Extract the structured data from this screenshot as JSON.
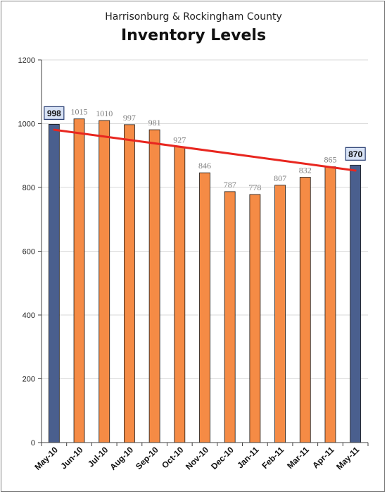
{
  "subtitle": "Harrisonburg & Rockingham County",
  "title": "Inventory Levels",
  "colors": {
    "bar": "#f58b45",
    "highlight_bar": "#4a5f8e",
    "trend_line": "#e8261f",
    "gridline": "#d9d9d9",
    "axis": "#404040",
    "value_label": "#808080",
    "highlight_label_bg": "#d7e2f5",
    "highlight_label_border": "#2a3f73"
  },
  "chart_data": {
    "type": "bar",
    "categories": [
      "May-10",
      "Jun-10",
      "Jul-10",
      "Aug-10",
      "Sep-10",
      "Oct-10",
      "Nov-10",
      "Dec-10",
      "Jan-11",
      "Feb-11",
      "Mar-11",
      "Apr-11",
      "May-11"
    ],
    "values": [
      998,
      1015,
      1010,
      997,
      981,
      927,
      846,
      787,
      778,
      807,
      832,
      865,
      870
    ],
    "highlighted": [
      0,
      12
    ],
    "ylim": [
      0,
      1200
    ],
    "yticks": [
      0,
      200,
      400,
      600,
      800,
      1000,
      1200
    ],
    "grid": true,
    "legend": "none",
    "trendline": {
      "type": "linear",
      "start": 981,
      "end": 853
    }
  }
}
